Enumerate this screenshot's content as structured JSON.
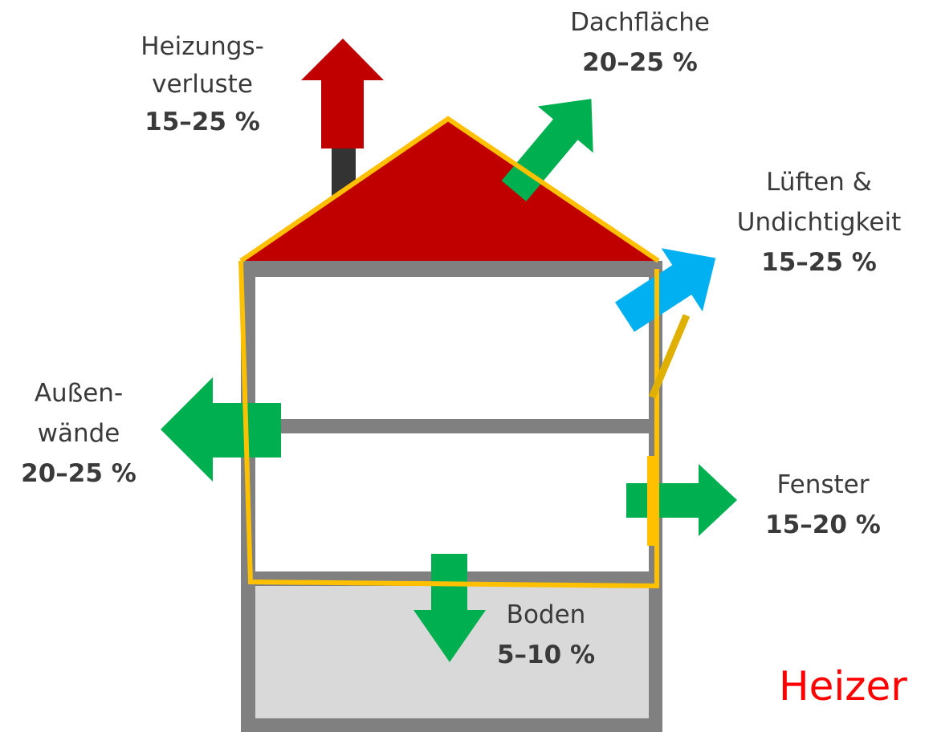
{
  "labels": [
    {
      "name": [
        "Heizungs-",
        "verluste"
      ],
      "value": "15–25 %"
    },
    {
      "name": [
        "Dachfläche"
      ],
      "value": "20–25 %"
    },
    {
      "name": [
        "Lüften &",
        "Undichtigkeit"
      ],
      "value": "15–25 %"
    },
    {
      "name": [
        "Außen-",
        "wände"
      ],
      "value": "20–25 %"
    },
    {
      "name": [
        "Fenster"
      ],
      "value": "15–20 %"
    },
    {
      "name": [
        "Boden"
      ],
      "value": "5–10 %"
    }
  ],
  "watermark": "Heizer"
}
